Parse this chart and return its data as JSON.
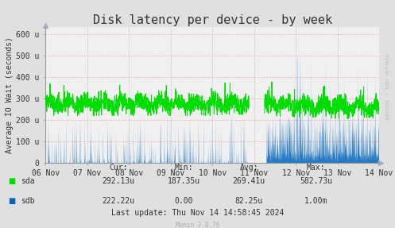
{
  "title": "Disk latency per device - by week",
  "ylabel": "Average IO Wait (seconds)",
  "background_color": "#e0e0e0",
  "plot_background": "#f0f0f0",
  "grid_color_h": "#ff8888",
  "grid_color_v": "#aaaacc",
  "ylim": [
    0,
    630
  ],
  "yticks": [
    0,
    100,
    200,
    300,
    400,
    500,
    600
  ],
  "ytick_labels": [
    "0",
    "100 u",
    "200 u",
    "300 u",
    "400 u",
    "500 u",
    "600 u"
  ],
  "xtick_labels": [
    "06 Nov",
    "07 Nov",
    "08 Nov",
    "09 Nov",
    "10 Nov",
    "11 Nov",
    "12 Nov",
    "13 Nov",
    "14 Nov"
  ],
  "sda_color": "#00dd00",
  "sdb_color": "#0066bb",
  "stats_header": [
    "Cur:",
    "Min:",
    "Avg:",
    "Max:"
  ],
  "stats_sda": [
    "292.13u",
    "187.35u",
    "269.41u",
    "582.73u"
  ],
  "stats_sdb": [
    "222.22u",
    "0.00",
    "82.25u",
    "1.00m"
  ],
  "last_update": "Last update: Thu Nov 14 14:58:45 2024",
  "munin_version": "Munin 2.0.76",
  "rrdtool_text": "RRDTOOL / TOBI OETIKER",
  "title_fontsize": 11,
  "axis_label_fontsize": 7,
  "tick_fontsize": 7,
  "stats_fontsize": 7
}
